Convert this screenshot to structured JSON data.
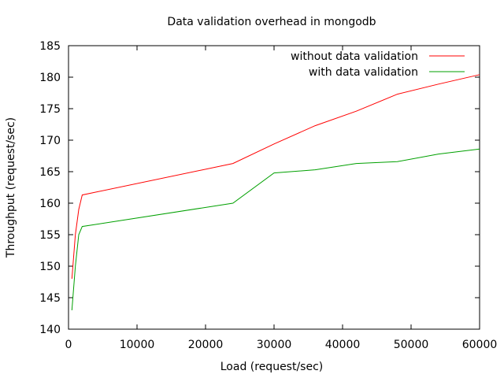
{
  "chart_data": {
    "type": "line",
    "title": "Data validation overhead in mongodb",
    "xlabel": "Load (request/sec)",
    "ylabel": "Throughput (request/sec)",
    "xlim": [
      0,
      60000
    ],
    "ylim": [
      140,
      185
    ],
    "xticks": [
      0,
      10000,
      20000,
      30000,
      40000,
      50000,
      60000
    ],
    "yticks": [
      140,
      145,
      150,
      155,
      160,
      165,
      170,
      175,
      180,
      185
    ],
    "grid": false,
    "legend_position": "top-right",
    "series": [
      {
        "name": "without data validation",
        "color": "#ff0000",
        "x": [
          500,
          1000,
          1500,
          2000,
          24000,
          30000,
          36000,
          42000,
          48000,
          54000,
          60000
        ],
        "y": [
          148,
          155,
          159,
          161.3,
          166.3,
          169.4,
          172.3,
          174.6,
          177.3,
          178.9,
          180.4
        ]
      },
      {
        "name": "with data validation",
        "color": "#00a000",
        "x": [
          500,
          1000,
          1500,
          2000,
          24000,
          30000,
          36000,
          42000,
          48000,
          54000,
          60000
        ],
        "y": [
          143,
          150,
          155,
          156.3,
          160,
          164.8,
          165.3,
          166.3,
          166.6,
          167.8,
          168.6
        ]
      }
    ]
  }
}
